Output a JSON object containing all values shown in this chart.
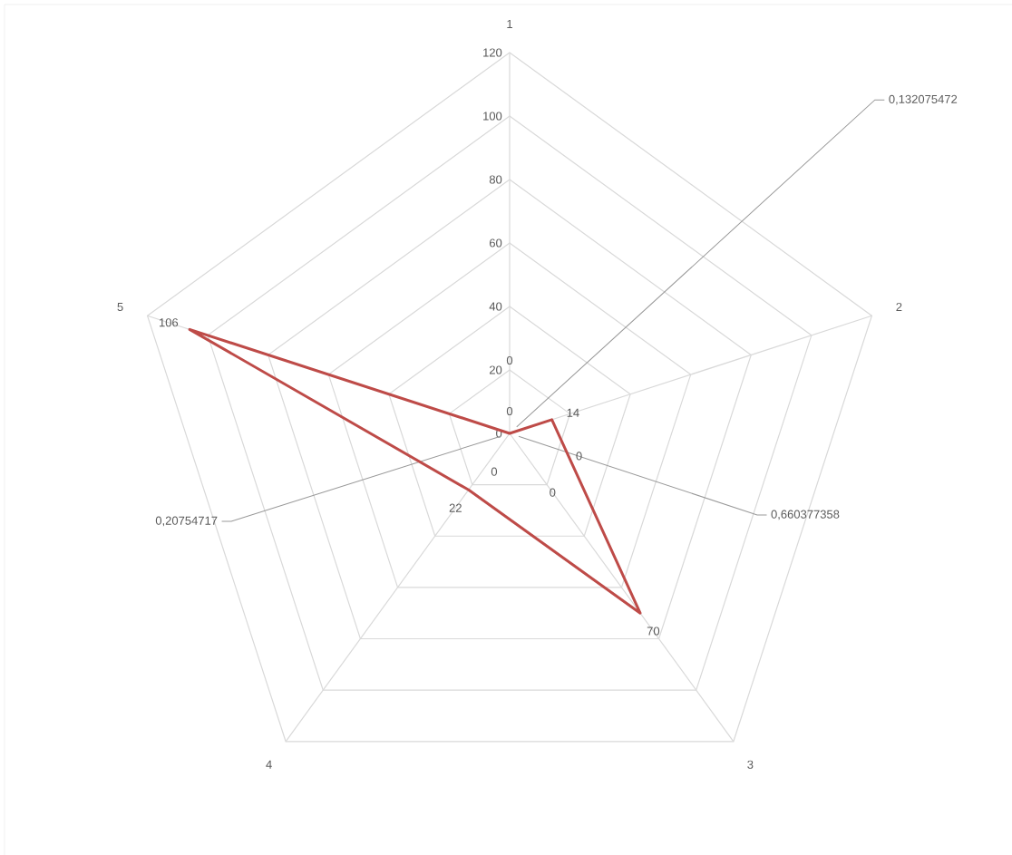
{
  "chart_data": {
    "type": "radar",
    "categories": [
      "1",
      "2",
      "3",
      "4",
      "5"
    ],
    "ylim": [
      0,
      120
    ],
    "yticks": [
      0,
      20,
      40,
      60,
      80,
      100,
      120
    ],
    "grid": true,
    "data_labels": true,
    "series": [
      {
        "color": "#be4b48",
        "values": [
          0,
          14,
          70,
          22,
          106
        ],
        "value_labels": [
          "0",
          "14",
          "70",
          "22",
          "106"
        ]
      }
    ],
    "annotations": [
      "0,132075472",
      "0,660377358",
      "0,20754717",
      "0",
      "0",
      "0",
      "0"
    ]
  }
}
